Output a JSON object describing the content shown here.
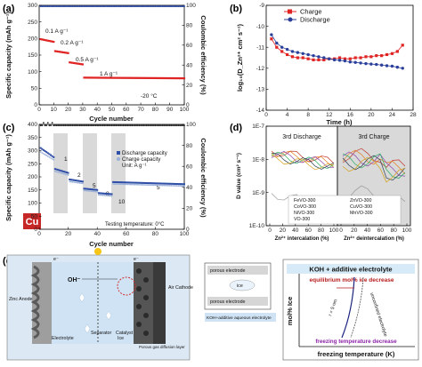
{
  "figure_caption": "",
  "chart_data": [
    {
      "id": "a",
      "panel_label": "(a)",
      "type": "scatter",
      "xlabel": "Cycle number",
      "ylabel_left": "Specific capacity (mAh g⁻¹)",
      "ylabel_right": "Coulombic efficiency (%)",
      "xlim": [
        0,
        100
      ],
      "ylim_left": [
        0,
        300
      ],
      "ylim_right": [
        0,
        100
      ],
      "x_ticks": [
        "0",
        "10",
        "20",
        "30",
        "40",
        "50",
        "60",
        "70",
        "80",
        "90",
        "100"
      ],
      "y_ticks_left": [
        "0",
        "50",
        "100",
        "150",
        "200",
        "250",
        "300"
      ],
      "y_ticks_right": [
        "0",
        "20",
        "40",
        "60",
        "80",
        "100"
      ],
      "annotations": [
        "0.1 A g⁻¹",
        "0.2 A g⁻¹",
        "0.5 A g⁻¹",
        "1 A g⁻¹",
        "-20 °C"
      ],
      "series": [
        {
          "role": "capacity",
          "color": "#e02424",
          "segments": [
            {
              "x": [
                1,
                10
              ],
              "y": [
                198,
                190
              ]
            },
            {
              "x": [
                11,
                20
              ],
              "y": [
                162,
                156
              ]
            },
            {
              "x": [
                21,
                30
              ],
              "y": [
                128,
                122
              ]
            },
            {
              "x": [
                31,
                100
              ],
              "y": [
                82,
                80
              ]
            }
          ]
        },
        {
          "role": "coulombic_efficiency",
          "color": "#2f4ea6",
          "x": [
            1,
            100
          ],
          "y": [
            99,
            99
          ]
        }
      ]
    },
    {
      "id": "b",
      "panel_label": "(b)",
      "type": "line",
      "xlabel": "Time (h)",
      "ylabel": "log₁₀(D_Zn²⁺ cm² s⁻¹)",
      "xlim": [
        0,
        28
      ],
      "ylim": [
        -14,
        -9
      ],
      "x_ticks": [
        "0",
        "4",
        "8",
        "12",
        "16",
        "20",
        "24",
        "28"
      ],
      "y_ticks": [
        "-14",
        "-13",
        "-12",
        "-11",
        "-10",
        "-9"
      ],
      "legend": [
        "Charge",
        "Discharge"
      ],
      "series": [
        {
          "name": "Charge",
          "color": "#e02424",
          "x": [
            1,
            2,
            3,
            4,
            5,
            6,
            7,
            8,
            9,
            10,
            11,
            12,
            13,
            14,
            15,
            16,
            17,
            18,
            19,
            20,
            21,
            22,
            23,
            24,
            25,
            26
          ],
          "y": [
            -10.6,
            -11.0,
            -11.2,
            -11.35,
            -11.45,
            -11.5,
            -11.5,
            -11.55,
            -11.6,
            -11.6,
            -11.6,
            -11.55,
            -11.55,
            -11.5,
            -11.55,
            -11.55,
            -11.5,
            -11.5,
            -11.45,
            -11.45,
            -11.4,
            -11.4,
            -11.35,
            -11.3,
            -11.2,
            -10.9
          ]
        },
        {
          "name": "Discharge",
          "color": "#2a3f9a",
          "x": [
            1,
            2,
            3,
            4,
            5,
            6,
            7,
            8,
            9,
            10,
            11,
            12,
            13,
            14,
            15,
            16,
            17,
            18,
            19,
            20,
            21,
            22,
            23,
            24,
            25,
            26
          ],
          "y": [
            -10.4,
            -10.8,
            -11.0,
            -11.1,
            -11.2,
            -11.25,
            -11.3,
            -11.35,
            -11.4,
            -11.45,
            -11.5,
            -11.55,
            -11.6,
            -11.62,
            -11.65,
            -11.7,
            -11.72,
            -11.75,
            -11.78,
            -11.8,
            -11.82,
            -11.85,
            -11.88,
            -11.9,
            -11.95,
            -12.0
          ]
        }
      ]
    },
    {
      "id": "c",
      "panel_label": "(c)",
      "type": "scatter",
      "xlabel": "Cycle number",
      "ylabel_left": "Specific capacity (mAh g⁻¹)",
      "ylabel_right": "Coulombic efficiency (%)",
      "xlim": [
        0,
        100
      ],
      "ylim_left": [
        0,
        400
      ],
      "ylim_right": [
        0,
        100
      ],
      "x_ticks": [
        "0",
        "20",
        "40",
        "60",
        "80",
        "100"
      ],
      "y_ticks_left": [
        "0",
        "50",
        "100",
        "150",
        "200",
        "250",
        "300",
        "350",
        "400"
      ],
      "y_ticks_right": [
        "0",
        "20",
        "40",
        "60",
        "80",
        "100"
      ],
      "legend": [
        "Discharge capacity",
        "Charge capacity",
        "Unit: A g⁻¹"
      ],
      "rate_labels": [
        "1",
        "2",
        "5",
        "8",
        "10",
        "5"
      ],
      "inset_label": "Cu",
      "note": "Testing temperature: 0°C",
      "series": [
        {
          "name": "Discharge capacity",
          "color": "#2f4ea6",
          "segments": [
            {
              "x": [
                1,
                10
              ],
              "y": [
                310,
                275
              ]
            },
            {
              "x": [
                11,
                20
              ],
              "y": [
                230,
                215
              ]
            },
            {
              "x": [
                21,
                30
              ],
              "y": [
                190,
                182
              ]
            },
            {
              "x": [
                31,
                40
              ],
              "y": [
                155,
                150
              ]
            },
            {
              "x": [
                41,
                50
              ],
              "y": [
                138,
                134
              ]
            },
            {
              "x": [
                51,
                100
              ],
              "y": [
                180,
                172
              ]
            }
          ]
        },
        {
          "name": "Charge capacity",
          "color": "#9ab0d8",
          "segments": [
            {
              "x": [
                1,
                10
              ],
              "y": [
                300,
                270
              ]
            },
            {
              "x": [
                11,
                20
              ],
              "y": [
                226,
                212
              ]
            },
            {
              "x": [
                21,
                30
              ],
              "y": [
                187,
                180
              ]
            },
            {
              "x": [
                31,
                40
              ],
              "y": [
                153,
                148
              ]
            },
            {
              "x": [
                41,
                50
              ],
              "y": [
                136,
                132
              ]
            },
            {
              "x": [
                51,
                100
              ],
              "y": [
                178,
                170
              ]
            }
          ]
        },
        {
          "role": "coulombic_efficiency",
          "color": "#222222",
          "x": [
            1,
            100
          ],
          "y": [
            99,
            99
          ]
        }
      ]
    },
    {
      "id": "d",
      "panel_label": "(d)",
      "type": "line",
      "xlabel_left": "Zn²⁺ intercalation (%)",
      "xlabel_right": "Zn²⁺ deintercalation (%)",
      "ylabel": "D value (cm² s⁻¹)",
      "section_titles": [
        "3rd Discharge",
        "3rd Charge"
      ],
      "y_ticks": [
        "1E-10",
        "1E-9",
        "1E-8",
        "1E-7"
      ],
      "x_ticks_left": [
        "0",
        "20",
        "40",
        "60",
        "80",
        "100"
      ],
      "x_ticks_right": [
        "0",
        "20",
        "40",
        "60",
        "80",
        "100"
      ],
      "legend": [
        "FeVO-300",
        "ZnVO-300",
        "CoVO-300",
        "CuVO-300",
        "NiVO-300",
        "MnVO-300",
        "VO-300"
      ],
      "colors": [
        "#c0392b",
        "#e67e22",
        "#8e44ad",
        "#27ae60",
        "#2c3e50",
        "#d4a017",
        "#999999"
      ]
    },
    {
      "id": "e",
      "panel_label": "(e)",
      "type": "diagram",
      "labels": {
        "zinc_anode": "Zinc Anode",
        "air_cathode": "Air Cathode",
        "oh": "OH⁻",
        "electrons": "e⁻",
        "electrolyte": "Electrolyte",
        "separator": "Separator",
        "catalyst": "Catalyst",
        "ice": "Ice",
        "gdl": "Porous gas diffusion layer",
        "porous_electrode": "porous electrode",
        "ice_inset": "ice",
        "inset_note": "KOH+additive aqueous electrolyte",
        "box_title": "KOH + additive electrolyte",
        "eq_ice": "equilibrium mol% ice decrease",
        "unconf": "unconfined electrolyte",
        "r_label": "r = 5 nm",
        "freeze": "freezing temperature decrease",
        "ylabel": "mol% Ice",
        "xlabel": "freezing temperature (K)"
      }
    }
  ]
}
